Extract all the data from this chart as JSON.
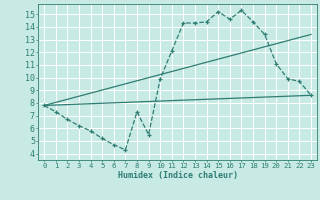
{
  "background_color": "#c8eae5",
  "grid_color": "#ffffff",
  "line_color": "#2e7d72",
  "x_label": "Humidex (Indice chaleur)",
  "xlim": [
    -0.5,
    23.5
  ],
  "ylim": [
    3.5,
    15.8
  ],
  "yticks": [
    4,
    5,
    6,
    7,
    8,
    9,
    10,
    11,
    12,
    13,
    14,
    15
  ],
  "xticks": [
    0,
    1,
    2,
    3,
    4,
    5,
    6,
    7,
    8,
    9,
    10,
    11,
    12,
    13,
    14,
    15,
    16,
    17,
    18,
    19,
    20,
    21,
    22,
    23
  ],
  "curve_x": [
    0,
    1,
    2,
    3,
    4,
    5,
    6,
    7,
    8,
    9,
    10,
    11,
    12,
    13,
    14,
    15,
    16,
    17,
    18,
    19,
    20,
    21,
    22,
    23
  ],
  "curve_y": [
    7.8,
    7.3,
    6.7,
    6.2,
    5.8,
    5.2,
    4.7,
    4.3,
    7.3,
    5.5,
    9.9,
    12.1,
    14.3,
    14.3,
    14.4,
    15.2,
    14.6,
    15.3,
    14.4,
    13.4,
    11.1,
    9.9,
    9.7,
    8.6
  ],
  "trend1_x": [
    0,
    23
  ],
  "trend1_y": [
    7.8,
    8.6
  ],
  "trend2_x": [
    0,
    23
  ],
  "trend2_y": [
    7.8,
    13.4
  ]
}
